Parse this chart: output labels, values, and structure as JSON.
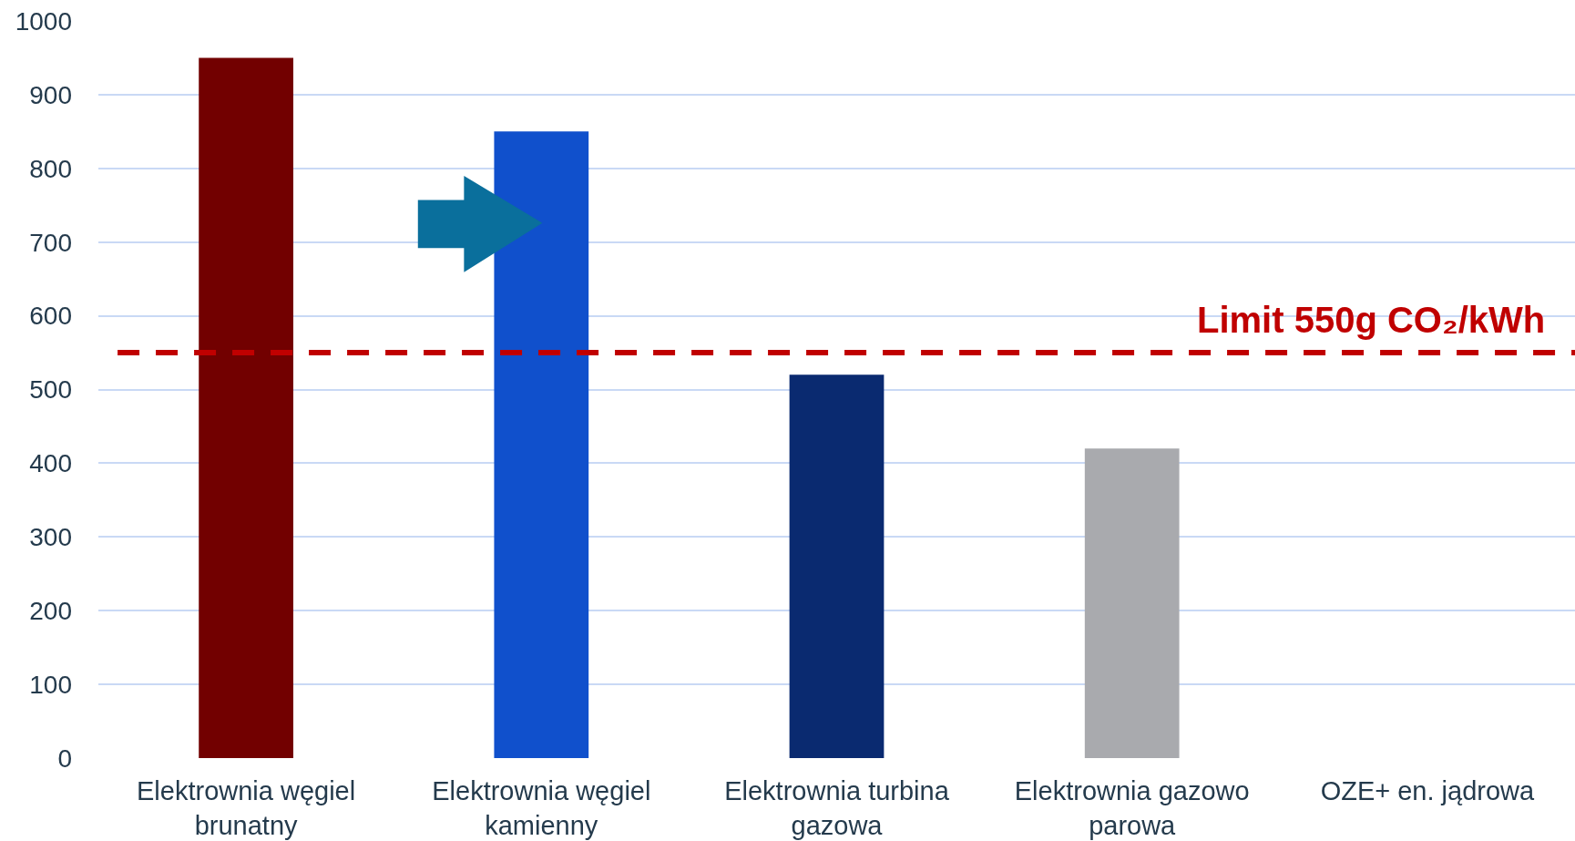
{
  "chart_data": {
    "type": "bar",
    "categories": [
      "Elektrownia węgiel brunatny",
      "Elektrownia węgiel kamienny",
      "Elektrownia turbina gazowa",
      "Elektrownia gazowo parowa",
      "OZE+ en. jądrowa"
    ],
    "values": [
      950,
      850,
      520,
      420,
      0
    ],
    "colors": [
      "#720000",
      "#1050cc",
      "#0a2a70",
      "#a9aaae",
      "#a9aaae"
    ],
    "ylim": [
      0,
      1000
    ],
    "yticks": [
      0,
      100,
      200,
      300,
      400,
      500,
      600,
      700,
      800,
      900,
      1000
    ],
    "ref_lines": [
      {
        "axis": "y",
        "value": 550,
        "label": "Limit 550g CO₂/kWh",
        "color": "#c00000",
        "line_style": "dashed"
      }
    ],
    "grid": "y"
  }
}
